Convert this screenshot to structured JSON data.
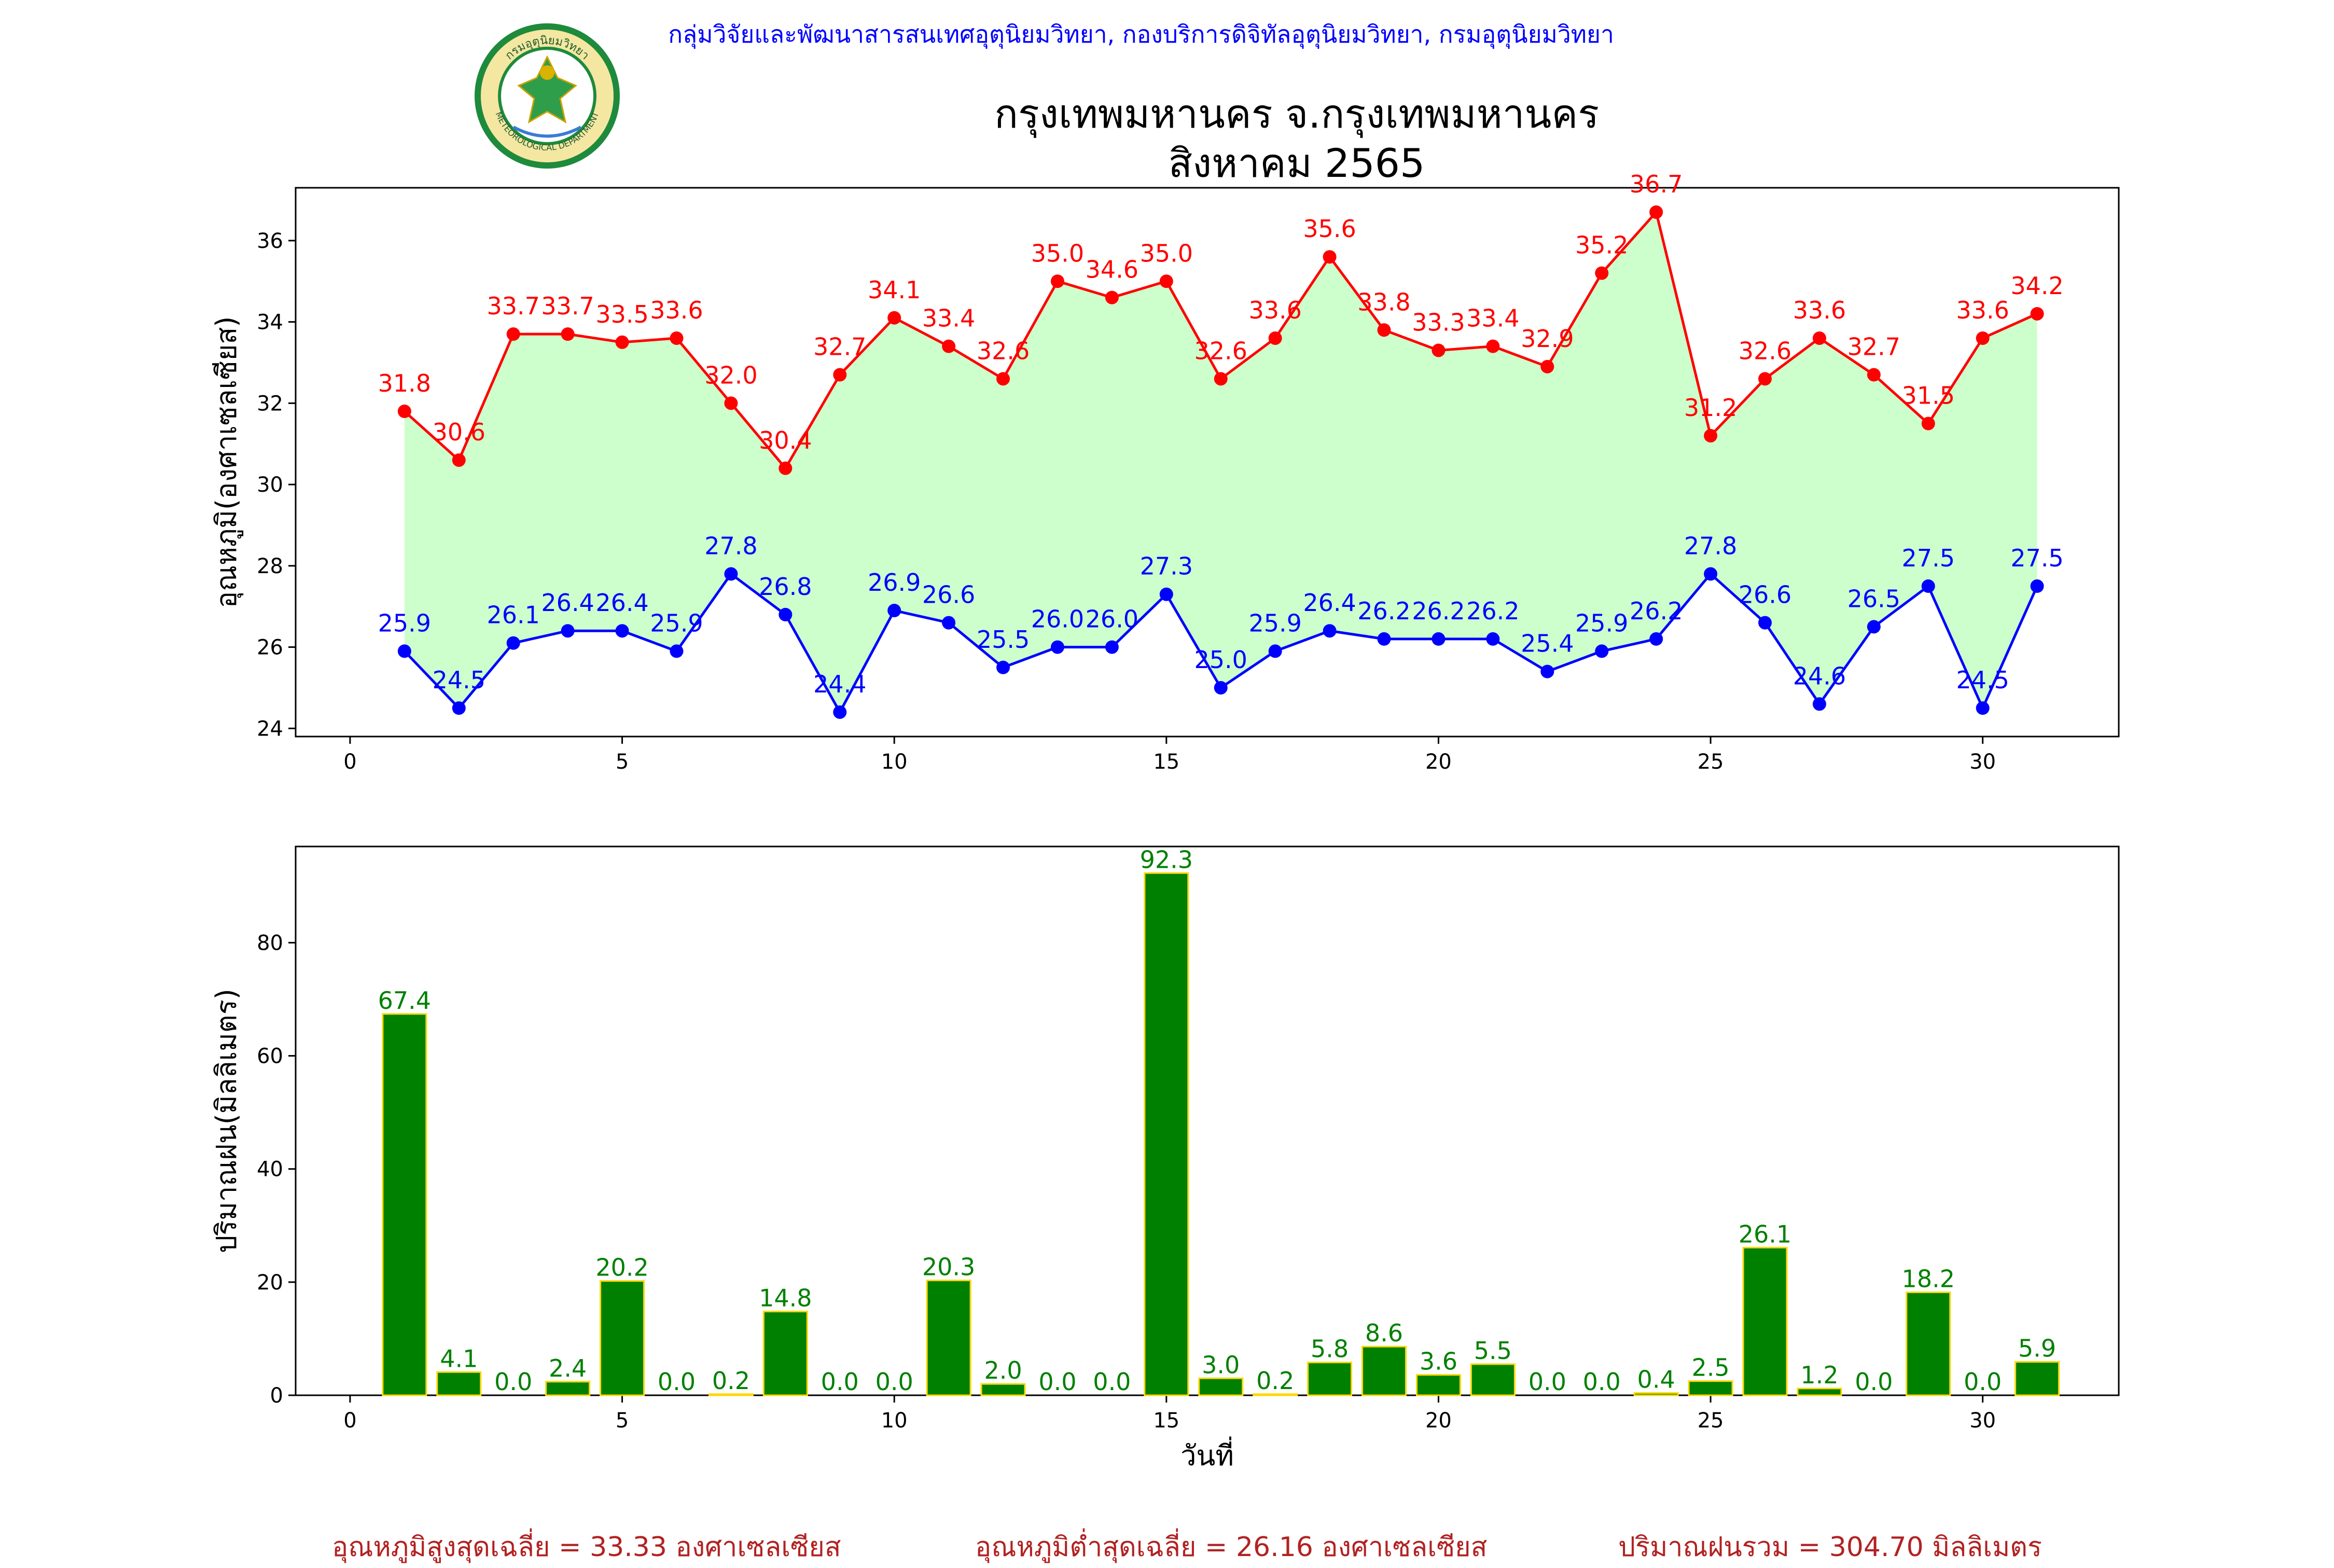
{
  "header": {
    "agency": "กลุ่มวิจัยและพัฒนาสารสนเทศอุตุนิยมวิทยา, กองบริการดิจิทัลอุตุนิยมวิทยา, กรมอุตุนิยมวิทยา",
    "title_line1": "กรุงเทพมหานคร จ.กรุงเทพมหานคร",
    "title_line2": "สิงหาคม 2565",
    "logo_text_top": "กรมอุตุนิยมวิทยา",
    "logo_text_bottom": "METEOROLOGICAL DEPARTMENT"
  },
  "colors": {
    "max_line": "#ff0000",
    "min_line": "#0000ff",
    "fill": "#ccffcc",
    "bar": "#008000",
    "bar_edge": "#ffd700",
    "bar_label": "#008000",
    "footer": "#b22222"
  },
  "footer": {
    "avg_max": "อุณหภูมิสูงสุดเฉลี่ย = 33.33 องศาเซลเซียส",
    "avg_min": "อุณหภูมิต่ำสุดเฉลี่ย = 26.16 องศาเซลเซียส",
    "total_rain": "ปริมาณฝนรวม = 304.70 มิลลิเมตร"
  },
  "chart_data": [
    {
      "type": "line",
      "ylabel": "อุณหภูมิ(องศาเซลเซียส)",
      "xlim": [
        -1,
        32.5
      ],
      "ylim": [
        23.8,
        37.3
      ],
      "xticks": [
        0,
        5,
        10,
        15,
        20,
        25,
        30
      ],
      "yticks": [
        24,
        26,
        28,
        30,
        32,
        34,
        36
      ],
      "x": [
        1,
        2,
        3,
        4,
        5,
        6,
        7,
        8,
        9,
        10,
        11,
        12,
        13,
        14,
        15,
        16,
        17,
        18,
        19,
        20,
        21,
        22,
        23,
        24,
        25,
        26,
        27,
        28,
        29,
        30,
        31
      ],
      "series": [
        {
          "key": "max",
          "values": [
            31.8,
            30.6,
            33.7,
            33.7,
            33.5,
            33.6,
            32.0,
            30.4,
            32.7,
            34.1,
            33.4,
            32.6,
            35.0,
            34.6,
            35.0,
            32.6,
            33.6,
            35.6,
            33.8,
            33.3,
            33.4,
            32.9,
            35.2,
            36.7,
            31.2,
            32.6,
            33.6,
            32.7,
            31.5,
            33.6,
            34.2
          ]
        },
        {
          "key": "min",
          "values": [
            25.9,
            24.5,
            26.1,
            26.4,
            26.4,
            25.9,
            27.8,
            26.8,
            24.4,
            26.9,
            26.6,
            25.5,
            26.0,
            26.0,
            27.3,
            25.0,
            25.9,
            26.4,
            26.2,
            26.2,
            26.2,
            25.4,
            25.9,
            26.2,
            27.8,
            26.6,
            24.6,
            26.5,
            27.5,
            24.5,
            27.5
          ]
        }
      ]
    },
    {
      "type": "bar",
      "ylabel": "ปริมาณฝน(มิลลิเมตร)",
      "xlabel": "วันที่",
      "xlim": [
        -1,
        32.5
      ],
      "ylim": [
        0,
        97
      ],
      "xticks": [
        0,
        5,
        10,
        15,
        20,
        25,
        30
      ],
      "yticks": [
        0,
        20,
        40,
        60,
        80
      ],
      "x": [
        1,
        2,
        3,
        4,
        5,
        6,
        7,
        8,
        9,
        10,
        11,
        12,
        13,
        14,
        15,
        16,
        17,
        18,
        19,
        20,
        21,
        22,
        23,
        24,
        25,
        26,
        27,
        28,
        29,
        30,
        31
      ],
      "values": [
        67.4,
        4.1,
        0.0,
        2.4,
        20.2,
        0.0,
        0.2,
        14.8,
        0.0,
        0.0,
        20.3,
        2.0,
        0.0,
        0.0,
        92.3,
        3.0,
        0.2,
        5.8,
        8.6,
        3.6,
        5.5,
        0.0,
        0.0,
        0.4,
        2.5,
        26.1,
        1.2,
        0.0,
        18.2,
        0.0,
        5.9
      ]
    }
  ]
}
